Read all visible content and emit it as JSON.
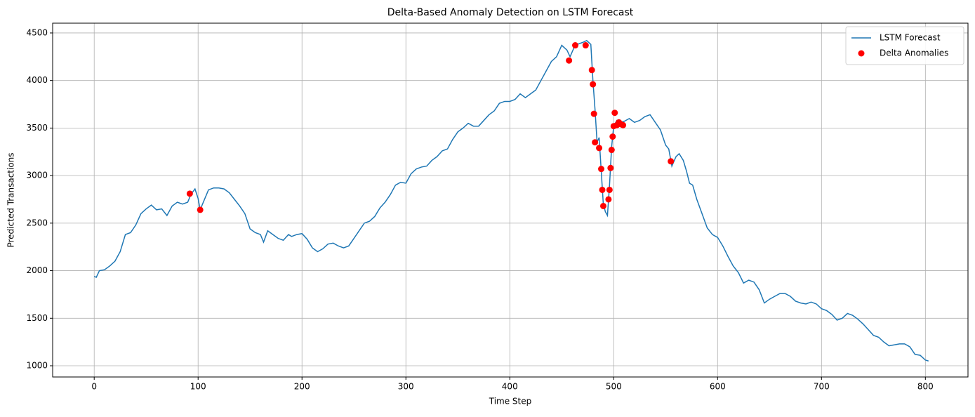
{
  "chart_data": {
    "type": "line",
    "title": "Delta-Based Anomaly Detection on LSTM Forecast",
    "x_label": "Time Step",
    "y_label": "Predicted Transactions",
    "xlim": [
      -40,
      841
    ],
    "ylim": [
      882,
      4603
    ],
    "xticks": [
      0,
      100,
      200,
      300,
      400,
      500,
      600,
      700,
      800
    ],
    "yticks": [
      1000,
      1500,
      2000,
      2500,
      3000,
      3500,
      4000,
      4500
    ],
    "grid": true,
    "legend": "upper right",
    "series": [
      {
        "name": "LSTM Forecast",
        "type": "line",
        "color": "#1f77b4",
        "x": [
          0,
          2,
          5,
          10,
          15,
          20,
          25,
          30,
          35,
          40,
          45,
          50,
          55,
          60,
          65,
          70,
          75,
          80,
          85,
          90,
          93,
          97,
          100,
          102,
          105,
          110,
          115,
          120,
          125,
          130,
          135,
          140,
          145,
          150,
          155,
          160,
          163,
          167,
          172,
          177,
          182,
          187,
          190,
          195,
          200,
          205,
          210,
          215,
          220,
          225,
          230,
          235,
          240,
          245,
          250,
          255,
          260,
          265,
          270,
          275,
          280,
          285,
          290,
          295,
          300,
          305,
          310,
          315,
          320,
          325,
          330,
          335,
          340,
          345,
          350,
          355,
          360,
          365,
          370,
          375,
          380,
          385,
          390,
          395,
          400,
          405,
          410,
          415,
          420,
          425,
          430,
          435,
          440,
          445,
          450,
          455,
          458,
          462,
          465,
          470,
          474,
          478,
          480,
          482,
          484,
          486,
          488,
          490,
          492,
          494,
          496,
          498,
          500,
          503,
          506,
          510,
          515,
          520,
          525,
          530,
          535,
          540,
          545,
          550,
          553,
          556,
          560,
          563,
          567,
          570,
          573,
          576,
          580,
          585,
          590,
          595,
          600,
          605,
          610,
          615,
          620,
          625,
          630,
          635,
          640,
          645,
          650,
          655,
          660,
          665,
          670,
          675,
          680,
          685,
          690,
          695,
          700,
          705,
          710,
          715,
          720,
          725,
          730,
          735,
          740,
          745,
          750,
          755,
          760,
          765,
          770,
          775,
          780,
          785,
          790,
          795,
          800,
          803
        ],
        "values": [
          1940,
          1930,
          2000,
          2010,
          2050,
          2100,
          2200,
          2380,
          2400,
          2480,
          2600,
          2650,
          2690,
          2640,
          2650,
          2580,
          2680,
          2720,
          2700,
          2720,
          2800,
          2860,
          2760,
          2640,
          2720,
          2850,
          2870,
          2870,
          2860,
          2820,
          2750,
          2680,
          2600,
          2440,
          2400,
          2380,
          2300,
          2420,
          2380,
          2340,
          2320,
          2380,
          2360,
          2380,
          2390,
          2330,
          2240,
          2200,
          2230,
          2280,
          2290,
          2260,
          2240,
          2260,
          2340,
          2420,
          2500,
          2520,
          2570,
          2660,
          2720,
          2800,
          2900,
          2930,
          2920,
          3020,
          3070,
          3090,
          3100,
          3160,
          3200,
          3260,
          3280,
          3380,
          3460,
          3500,
          3550,
          3520,
          3520,
          3580,
          3640,
          3680,
          3760,
          3780,
          3780,
          3800,
          3860,
          3820,
          3860,
          3900,
          4000,
          4100,
          4200,
          4250,
          4370,
          4320,
          4250,
          4350,
          4380,
          4400,
          4420,
          4380,
          4000,
          3700,
          3350,
          3400,
          3050,
          2700,
          2620,
          2580,
          2900,
          3300,
          3520,
          3580,
          3560,
          3570,
          3600,
          3560,
          3580,
          3620,
          3640,
          3560,
          3480,
          3320,
          3280,
          3100,
          3200,
          3230,
          3160,
          3050,
          2920,
          2900,
          2750,
          2600,
          2450,
          2380,
          2350,
          2260,
          2150,
          2050,
          1980,
          1870,
          1900,
          1880,
          1800,
          1660,
          1700,
          1730,
          1760,
          1760,
          1730,
          1680,
          1660,
          1650,
          1670,
          1650,
          1600,
          1580,
          1540,
          1480,
          1500,
          1550,
          1530,
          1490,
          1440,
          1380,
          1320,
          1300,
          1250,
          1210,
          1220,
          1230,
          1230,
          1200,
          1120,
          1110,
          1060,
          1050
        ]
      },
      {
        "name": "Delta Anomalies",
        "type": "scatter",
        "color": "#ff0000",
        "x": [
          92,
          102,
          457,
          463,
          473,
          479,
          480,
          481,
          482,
          486,
          488,
          489,
          490,
          495,
          496,
          497,
          498,
          499,
          500,
          501,
          503,
          505,
          507,
          509,
          555
        ],
        "values": [
          2810,
          2640,
          4210,
          4370,
          4370,
          4110,
          3960,
          3650,
          3350,
          3290,
          3070,
          2850,
          2680,
          2750,
          2850,
          3080,
          3270,
          3410,
          3520,
          3660,
          3530,
          3560,
          3540,
          3530,
          3150
        ]
      }
    ]
  }
}
